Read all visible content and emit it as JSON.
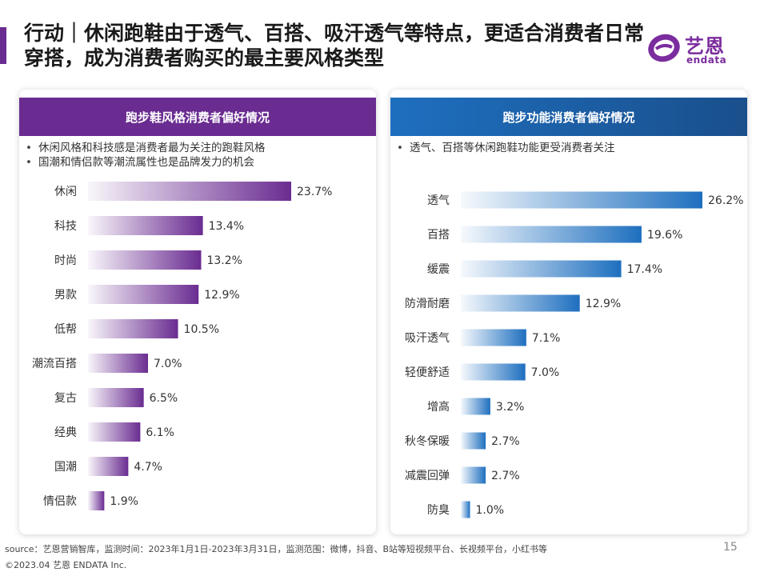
{
  "title": "行动｜休闲跑鞋由于透气、百搭、吸汗透气等特点，更适合消费者日常穿搭，成为消费者购买的最主要风格类型",
  "logo": {
    "cn": "艺恩",
    "en": "endata",
    "color": "#7b2c9e"
  },
  "colors": {
    "accent": "#6a2c91",
    "purple": "#6a2c91",
    "blue": "#1e6fbf",
    "blue_dark": "#1a4f8c"
  },
  "left_panel": {
    "header": "跑步鞋风格消费者偏好情况",
    "bullets": [
      "休闲风格和科技感是消费者最为关注的跑鞋风格",
      "国潮和情侣款等潮流属性也是品牌发力的机会"
    ]
  },
  "right_panel": {
    "header": "跑步功能消费者偏好情况",
    "bullets": [
      "透气、百搭等休闲跑鞋功能更受消费者关注"
    ]
  },
  "chart_data": [
    {
      "type": "bar",
      "orientation": "horizontal",
      "categories": [
        "休闲",
        "科技",
        "时尚",
        "男款",
        "低帮",
        "潮流百搭",
        "复古",
        "经典",
        "国潮",
        "情侣款"
      ],
      "values": [
        23.7,
        13.4,
        13.2,
        12.9,
        10.5,
        7.0,
        6.5,
        6.1,
        4.7,
        1.9
      ],
      "value_labels": [
        "23.7%",
        "13.4%",
        "13.2%",
        "12.9%",
        "10.5%",
        "7.0%",
        "6.5%",
        "6.1%",
        "4.7%",
        "1.9%"
      ],
      "unit": "%",
      "color": "#6a2c91"
    },
    {
      "type": "bar",
      "orientation": "horizontal",
      "categories": [
        "透气",
        "百搭",
        "缓震",
        "防滑耐磨",
        "吸汗透气",
        "轻便舒适",
        "增高",
        "秋冬保暖",
        "减震回弹",
        "防臭"
      ],
      "values": [
        26.2,
        19.6,
        17.4,
        12.9,
        7.1,
        7.0,
        3.2,
        2.7,
        2.7,
        1.0
      ],
      "value_labels": [
        "26.2%",
        "19.6%",
        "17.4%",
        "12.9%",
        "7.1%",
        "7.0%",
        "3.2%",
        "2.7%",
        "2.7%",
        "1.0%"
      ],
      "unit": "%",
      "color": "#1e6fbf"
    }
  ],
  "footer": {
    "source": "source：艺恩营销智库，监测时间：2023年1月1日-2023年3月31日，监测范围：微博，抖音、B站等短视频平台、长视频平台，小红书等",
    "page": "15",
    "copyright": "©2023.04 艺恩 ENDATA Inc."
  }
}
